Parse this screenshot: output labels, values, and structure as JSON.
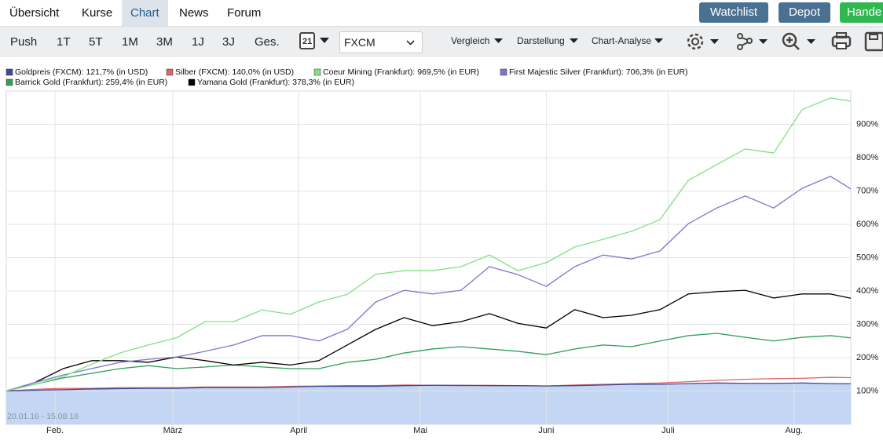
{
  "nav": {
    "tabs": [
      "Übersicht",
      "Kurse",
      "Chart",
      "News",
      "Forum"
    ],
    "active_tab": "Chart",
    "buttons": [
      "Watchlist",
      "Depot",
      "Hande"
    ]
  },
  "toolbar": {
    "periods": [
      "Push",
      "1T",
      "5T",
      "1M",
      "3M",
      "1J",
      "3J",
      "Ges."
    ],
    "calendar_day": "21",
    "exchange": "FXCM",
    "menus": [
      "Vergleich",
      "Darstellung",
      "Chart-Analyse"
    ]
  },
  "chart_data": {
    "type": "line",
    "annotation": "20.01.16 - 15.08.16",
    "x": [
      0,
      7,
      14,
      21,
      28,
      35,
      42,
      49,
      56,
      63,
      70,
      77,
      84,
      91,
      98,
      105,
      112,
      119,
      126,
      133,
      140,
      147,
      154,
      161,
      168,
      175,
      182,
      189,
      196,
      203,
      208
    ],
    "xlim": [
      0,
      208
    ],
    "xticks": [
      {
        "value": 12,
        "label": "Feb."
      },
      {
        "value": 41,
        "label": "März"
      },
      {
        "value": 72,
        "label": "April"
      },
      {
        "value": 102,
        "label": "Mai"
      },
      {
        "value": 133,
        "label": "Juni"
      },
      {
        "value": 163,
        "label": "Juli"
      },
      {
        "value": 194,
        "label": "Aug."
      }
    ],
    "ylim": [
      0,
      1000
    ],
    "yticks": [
      {
        "value": 100,
        "label": "100%"
      },
      {
        "value": 200,
        "label": "200%"
      },
      {
        "value": 300,
        "label": "300%"
      },
      {
        "value": 400,
        "label": "400%"
      },
      {
        "value": 500,
        "label": "500%"
      },
      {
        "value": 600,
        "label": "600%"
      },
      {
        "value": 700,
        "label": "700%"
      },
      {
        "value": 800,
        "label": "800%"
      },
      {
        "value": 900,
        "label": "900%"
      }
    ],
    "grid": true,
    "series": [
      {
        "name": "Goldpreis (FXCM): 121,7% (in USD)",
        "color": "#3b4a9c",
        "fill": "#c3d7f4",
        "values": [
          100,
          102,
          104,
          106,
          107,
          108,
          108,
          110,
          110,
          110,
          112,
          114,
          114,
          114,
          116,
          117,
          117,
          116,
          116,
          115,
          116,
          118,
          120,
          120,
          122,
          124,
          123,
          123,
          124,
          122,
          121.7
        ]
      },
      {
        "name": "Silber (FXCM): 140,0% (in USD)",
        "color": "#e06464",
        "values": [
          100,
          105,
          108,
          108,
          110,
          110,
          110,
          112,
          112,
          112,
          114,
          115,
          116,
          116,
          118,
          117,
          116,
          117,
          116,
          115,
          118,
          120,
          122,
          124,
          128,
          132,
          135,
          137,
          138,
          141,
          140
        ]
      },
      {
        "name": "Coeur Mining (Frankfurt): 969,5% (in EUR)",
        "color": "#80e080",
        "values": [
          100,
          120,
          143,
          180,
          214,
          238,
          260,
          308,
          308,
          343,
          330,
          367,
          390,
          450,
          461,
          461,
          473,
          508,
          461,
          485,
          532,
          555,
          579,
          614,
          732,
          779,
          826,
          814,
          944,
          979,
          969.5
        ]
      },
      {
        "name": "First Majestic Silver (Frankfurt): 706,3% (in EUR)",
        "color": "#7a76d0",
        "values": [
          100,
          125,
          148,
          167,
          186,
          195,
          202,
          219,
          238,
          266,
          266,
          250,
          285,
          367,
          402,
          391,
          402,
          473,
          449,
          414,
          473,
          508,
          496,
          520,
          602,
          649,
          685,
          649,
          708,
          744,
          706.3
        ]
      },
      {
        "name": "Barrick Gold (Frankfurt): 259,4% (in EUR)",
        "color": "#2e9e5a",
        "values": [
          100,
          120,
          139,
          153,
          167,
          176,
          167,
          172,
          178,
          172,
          167,
          167,
          186,
          195,
          214,
          226,
          233,
          226,
          219,
          209,
          226,
          238,
          233,
          250,
          266,
          273,
          261,
          250,
          261,
          266,
          259.4
        ]
      },
      {
        "name": "Yamana Gold (Frankfurt): 378,3% (in EUR)",
        "color": "#000000",
        "values": [
          100,
          125,
          167,
          191,
          191,
          186,
          202,
          191,
          178,
          186,
          178,
          191,
          238,
          285,
          320,
          296,
          308,
          332,
          303,
          289,
          344,
          320,
          327,
          344,
          391,
          398,
          402,
          379,
          391,
          391,
          378.3
        ]
      }
    ]
  }
}
